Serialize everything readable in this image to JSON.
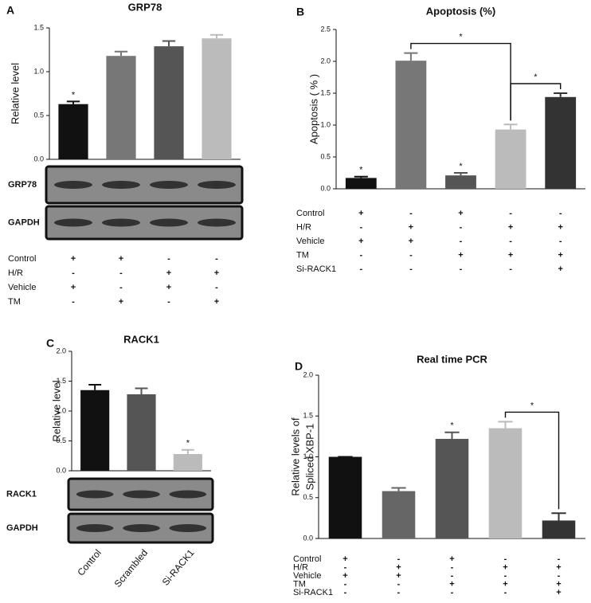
{
  "chart_data": [
    {
      "panel": "A",
      "type": "bar",
      "title": "GRP78",
      "ylabel": "Relative level",
      "ylim": [
        0,
        1.5
      ],
      "yticks": [
        {
          "value": 0,
          "label": "0.0"
        },
        {
          "value": 0.5,
          "label": "0.5"
        },
        {
          "value": 1,
          "label": "1.0"
        },
        {
          "value": 1.5,
          "label": "1.5"
        }
      ],
      "values": [
        0.63,
        1.18,
        1.29,
        1.38
      ],
      "errors": [
        0.03,
        0.05,
        0.06,
        0.04
      ],
      "colors": [
        "#111111",
        "#777777",
        "#555555",
        "#bbbbbb"
      ],
      "significance": [
        "*",
        null,
        null,
        null
      ],
      "blots": [
        "GRP78",
        "GAPDH"
      ],
      "conditions": [
        {
          "label": "Control",
          "marks": [
            "+",
            "+",
            "-",
            "-"
          ]
        },
        {
          "label": "H/R",
          "marks": [
            "-",
            "-",
            "+",
            "+"
          ]
        },
        {
          "label": "Vehicle",
          "marks": [
            "+",
            "-",
            "+",
            "-"
          ]
        },
        {
          "label": "TM",
          "marks": [
            "-",
            "+",
            "-",
            "+"
          ]
        }
      ]
    },
    {
      "panel": "B",
      "type": "bar",
      "title": "Apoptosis (%)",
      "ylabel": "Apoptosis ( % )",
      "ylim": [
        0,
        2.5
      ],
      "yticks": [
        {
          "value": 0,
          "label": "0.0"
        },
        {
          "value": 0.5,
          "label": "0.5"
        },
        {
          "value": 1,
          "label": "1.0"
        },
        {
          "value": 1.5,
          "label": "1.5"
        },
        {
          "value": 2,
          "label": "2.0"
        },
        {
          "value": 2.5,
          "label": "2.5"
        }
      ],
      "values": [
        0.17,
        2.01,
        0.21,
        0.93,
        1.44
      ],
      "errors": [
        0.02,
        0.12,
        0.04,
        0.08,
        0.06
      ],
      "colors": [
        "#111111",
        "#777777",
        "#555555",
        "#bbbbbb",
        "#333333"
      ],
      "significance": [
        "*",
        null,
        "*",
        null,
        null
      ],
      "brackets": [
        {
          "from": 1,
          "to": 3,
          "label": "*"
        },
        {
          "from": 3,
          "to": 4,
          "label": "*"
        }
      ],
      "conditions": [
        {
          "label": "Control",
          "marks": [
            "+",
            "-",
            "+",
            "-",
            "-"
          ]
        },
        {
          "label": "H/R",
          "marks": [
            "-",
            "+",
            "-",
            "+",
            "+"
          ]
        },
        {
          "label": "Vehicle",
          "marks": [
            "+",
            "+",
            "-",
            "-",
            "-"
          ]
        },
        {
          "label": "TM",
          "marks": [
            "-",
            "-",
            "+",
            "+",
            "+"
          ]
        },
        {
          "label": "Si-RACK1",
          "marks": [
            "-",
            "-",
            "-",
            "-",
            "+"
          ]
        }
      ]
    },
    {
      "panel": "C",
      "type": "bar",
      "title": "RACK1",
      "ylabel": "Relative level",
      "ylim": [
        0,
        2
      ],
      "yticks": [
        {
          "value": 0,
          "label": "0.0"
        },
        {
          "value": 0.5,
          "label": "0.5"
        },
        {
          "value": 1,
          "label": "1.0"
        },
        {
          "value": 1.5,
          "label": "1.5"
        },
        {
          "value": 2,
          "label": "2.0"
        }
      ],
      "categories": [
        "Control",
        "Scrambled",
        "Si-RACK1"
      ],
      "values": [
        1.35,
        1.28,
        0.28
      ],
      "errors": [
        0.09,
        0.1,
        0.07
      ],
      "colors": [
        "#111111",
        "#555555",
        "#bbbbbb"
      ],
      "significance": [
        null,
        null,
        "*"
      ],
      "blots": [
        "RACK1",
        "GAPDH"
      ]
    },
    {
      "panel": "D",
      "type": "bar",
      "title": "Real time PCR",
      "ylabel": [
        "Relative levels of",
        "Spliced XBP-1"
      ],
      "ylim": [
        0,
        2
      ],
      "yticks": [
        {
          "value": 0,
          "label": "0.0"
        },
        {
          "value": 0.5,
          "label": "0.5"
        },
        {
          "value": 1,
          "label": "1.0"
        },
        {
          "value": 1.5,
          "label": "1.5"
        },
        {
          "value": 2,
          "label": "2.0"
        }
      ],
      "values": [
        1.0,
        0.58,
        1.22,
        1.35,
        0.22
      ],
      "errors": [
        0,
        0.04,
        0.08,
        0.08,
        0.09
      ],
      "colors": [
        "#111111",
        "#666666",
        "#555555",
        "#bbbbbb",
        "#333333"
      ],
      "significance": [
        null,
        null,
        "*",
        null,
        null
      ],
      "brackets": [
        {
          "from": 3,
          "to": 4,
          "label": "*"
        }
      ],
      "conditions": [
        {
          "label": "Control",
          "marks": [
            "+",
            "-",
            "+",
            "-",
            "-"
          ]
        },
        {
          "label": "H/R",
          "marks": [
            "-",
            "+",
            "-",
            "+",
            "+"
          ]
        },
        {
          "label": "Vehicle",
          "marks": [
            "+",
            "+",
            "-",
            "-",
            "-"
          ]
        },
        {
          "label": "TM",
          "marks": [
            "-",
            "-",
            "+",
            "+",
            "+"
          ]
        },
        {
          "label": "Si-RACK1",
          "marks": [
            "-",
            "-",
            "-",
            "-",
            "+"
          ]
        }
      ]
    }
  ]
}
